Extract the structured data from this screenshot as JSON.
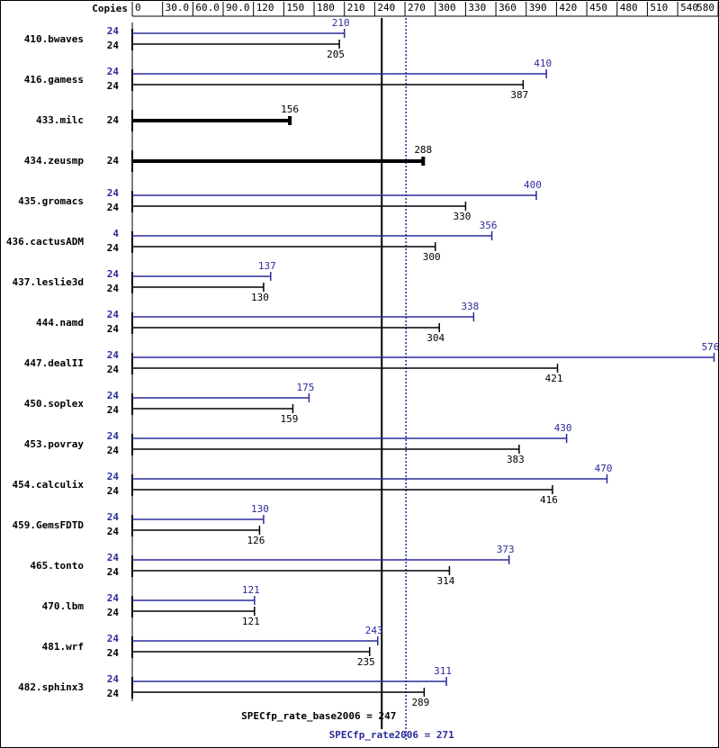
{
  "chart_data": {
    "type": "bar",
    "orientation": "horizontal",
    "copies_label": "Copies",
    "categories": [
      "410.bwaves",
      "416.gamess",
      "433.milc",
      "434.zeusmp",
      "435.gromacs",
      "436.cactusADM",
      "437.leslie3d",
      "444.namd",
      "447.dealII",
      "450.soplex",
      "453.povray",
      "454.calculix",
      "459.GemsFDTD",
      "465.tonto",
      "470.lbm",
      "481.wrf",
      "482.sphinx3"
    ],
    "series": [
      {
        "color": "#2b2b9c",
        "copies": [
          24,
          24,
          null,
          null,
          24,
          4,
          24,
          24,
          24,
          24,
          24,
          24,
          24,
          24,
          24,
          24,
          24
        ],
        "values": [
          210,
          410,
          null,
          null,
          400,
          356,
          137,
          338,
          576,
          175,
          430,
          470,
          130,
          373,
          121,
          243,
          311
        ]
      },
      {
        "color": "#000000",
        "copies": [
          24,
          24,
          24,
          24,
          24,
          24,
          24,
          24,
          24,
          24,
          24,
          24,
          24,
          24,
          24,
          24,
          24
        ],
        "values": [
          205,
          387,
          156,
          288,
          330,
          300,
          130,
          304,
          421,
          159,
          383,
          416,
          126,
          314,
          121,
          235,
          289
        ]
      }
    ],
    "xlim": [
      0,
      580
    ],
    "xticks": [
      0,
      {
        "value": 30,
        "label": "30.0"
      },
      {
        "value": 60,
        "label": "60.0"
      },
      {
        "value": 90,
        "label": "90.0"
      },
      120,
      150,
      180,
      210,
      240,
      270,
      300,
      330,
      360,
      390,
      420,
      450,
      480,
      510,
      540,
      580
    ],
    "base_metric": {
      "label": "SPECfp_rate_base2006 = 247",
      "value": 247,
      "color": "#000000"
    },
    "peak_metric": {
      "label": "SPECfp_rate2006 = 271",
      "value": 271,
      "color": "#2b2b9c"
    }
  }
}
